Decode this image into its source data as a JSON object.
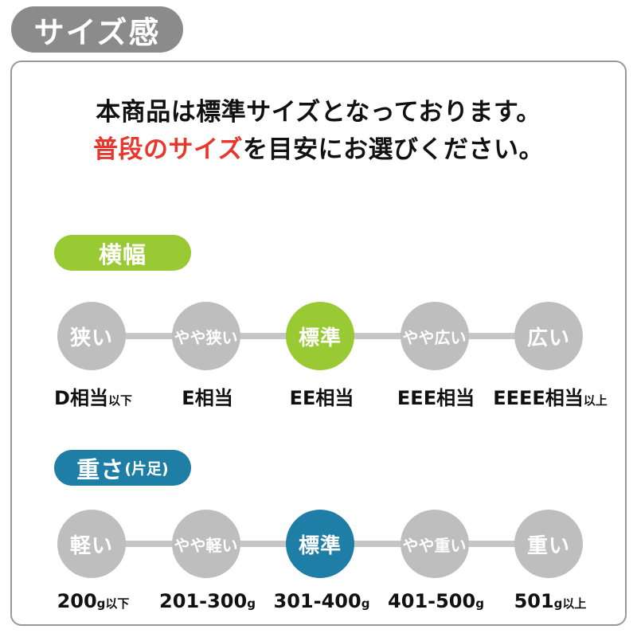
{
  "title_badge": "サイズ感",
  "intro": {
    "line1": "本商品は標準サイズとなっております。",
    "line2_highlight": "普段のサイズ",
    "line2_rest": "を目安にお選びください。"
  },
  "colors": {
    "badge_gray": "#8B8B8B",
    "panel_border": "#999999",
    "circle_gray": "#BEBEBE",
    "connector_gray": "#C6C6C6",
    "accent_green": "#99C933",
    "accent_teal": "#1F7EA5",
    "highlight_red": "#E8382D",
    "text_black": "#111111",
    "circle_text": "#FFFFFF"
  },
  "sections": [
    {
      "id": "width",
      "label": "横幅",
      "label_suffix": "",
      "accent": "#99C933",
      "steps": [
        {
          "circle_label": "狭い",
          "selected": false,
          "value": "D相当",
          "value_suffix": "以下"
        },
        {
          "circle_label": "やや狭い",
          "selected": false,
          "value": "E相当",
          "value_suffix": ""
        },
        {
          "circle_label": "標準",
          "selected": true,
          "value": "EE相当",
          "value_suffix": ""
        },
        {
          "circle_label": "やや広い",
          "selected": false,
          "value": "EEE相当",
          "value_suffix": ""
        },
        {
          "circle_label": "広い",
          "selected": false,
          "value": "EEEE相当",
          "value_suffix": "以上"
        }
      ]
    },
    {
      "id": "weight",
      "label": "重さ",
      "label_suffix": "(片足)",
      "accent": "#1F7EA5",
      "steps": [
        {
          "circle_label": "軽い",
          "selected": false,
          "value": "200",
          "value_suffix": "g以下"
        },
        {
          "circle_label": "やや軽い",
          "selected": false,
          "value": "201-300",
          "value_suffix": "g"
        },
        {
          "circle_label": "標準",
          "selected": true,
          "value": "301-400",
          "value_suffix": "g"
        },
        {
          "circle_label": "やや重い",
          "selected": false,
          "value": "401-500",
          "value_suffix": "g"
        },
        {
          "circle_label": "重い",
          "selected": false,
          "value": "501",
          "value_suffix": "g以上"
        }
      ]
    }
  ]
}
